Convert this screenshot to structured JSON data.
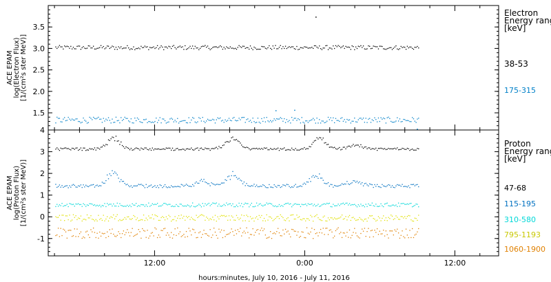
{
  "chart_data": [
    {
      "type": "scatter",
      "ylabel": [
        "ACE EPAM",
        "log(Electron Flux)",
        "[1/(cm²s ster MeV)]"
      ],
      "ylim": [
        1.1,
        4.0
      ],
      "yticks": [
        1.5,
        2.0,
        2.5,
        3.0,
        3.5
      ],
      "yticklabels": [
        "1.5",
        "2.0",
        "2.5",
        "3.0",
        "3.5"
      ],
      "legend_title": [
        "Electron",
        "Energy ranges",
        "[keV]"
      ],
      "series": [
        {
          "name": "38-53",
          "color": "#000000",
          "mean": 3.02,
          "jitter": 0.05,
          "spikes": [
            {
              "hour": 24.9,
              "value": 3.73
            }
          ]
        },
        {
          "name": "175-315",
          "color": "#0080c8",
          "mean": 1.33,
          "jitter": 0.07,
          "spikes": [
            {
              "hour": 23.2,
              "value": 1.56
            },
            {
              "hour": 21.7,
              "value": 1.55
            },
            {
              "hour": 33.0,
              "value": 1.12
            }
          ]
        }
      ]
    },
    {
      "type": "scatter",
      "ylabel": [
        "ACE EPAM",
        "log(Proton Flux)",
        "[1/(cm²s ster MeV)]"
      ],
      "ylim": [
        -1.8,
        4.0
      ],
      "yticks": [
        -1,
        0,
        1,
        2,
        3,
        4
      ],
      "yticklabels": [
        "-1",
        "0",
        "1",
        "2",
        "3",
        "4"
      ],
      "legend_title": [
        "Proton",
        "Energy ranges",
        "[keV]"
      ],
      "series": [
        {
          "name": "47-68",
          "color": "#000000",
          "mean": 3.12,
          "jitter": 0.06,
          "bumps": [
            {
              "hour": 8.7,
              "amp": 0.55,
              "width": 0.7
            },
            {
              "hour": 18.2,
              "amp": 0.45,
              "width": 0.8
            },
            {
              "hour": 25.2,
              "amp": 0.5,
              "width": 0.7
            },
            {
              "hour": 28.0,
              "amp": 0.2,
              "width": 0.8
            }
          ]
        },
        {
          "name": "115-195",
          "color": "#0070c0",
          "mean": 1.42,
          "jitter": 0.08,
          "bumps": [
            {
              "hour": 8.7,
              "amp": 0.6,
              "width": 0.7
            },
            {
              "hour": 15.8,
              "amp": 0.25,
              "width": 0.6
            },
            {
              "hour": 18.2,
              "amp": 0.5,
              "width": 0.8
            },
            {
              "hour": 24.9,
              "amp": 0.55,
              "width": 0.7
            },
            {
              "hour": 28.0,
              "amp": 0.2,
              "width": 0.8
            }
          ]
        },
        {
          "name": "310-580",
          "color": "#00d8d8",
          "mean": 0.55,
          "jitter": 0.09,
          "bumps": []
        },
        {
          "name": "795-1193",
          "color": "#e0e000",
          "mean": -0.05,
          "jitter": 0.15,
          "bumps": []
        },
        {
          "name": "1060-1900",
          "color": "#e08000",
          "mean": -0.75,
          "jitter": 0.25,
          "bumps": []
        }
      ]
    }
  ],
  "x_axis": {
    "label": "hours:minutes, July 10, 2016 - July 11, 2016",
    "range_hours": [
      3.5,
      39.5
    ],
    "data_range_hours": [
      4.1,
      33.1
    ],
    "tick_labels": [
      {
        "hour": 12,
        "label": "12:00"
      },
      {
        "hour": 24,
        "label": "0:00"
      },
      {
        "hour": 36,
        "label": "12:00"
      }
    ],
    "minor_ticks_every_hours": 2
  }
}
